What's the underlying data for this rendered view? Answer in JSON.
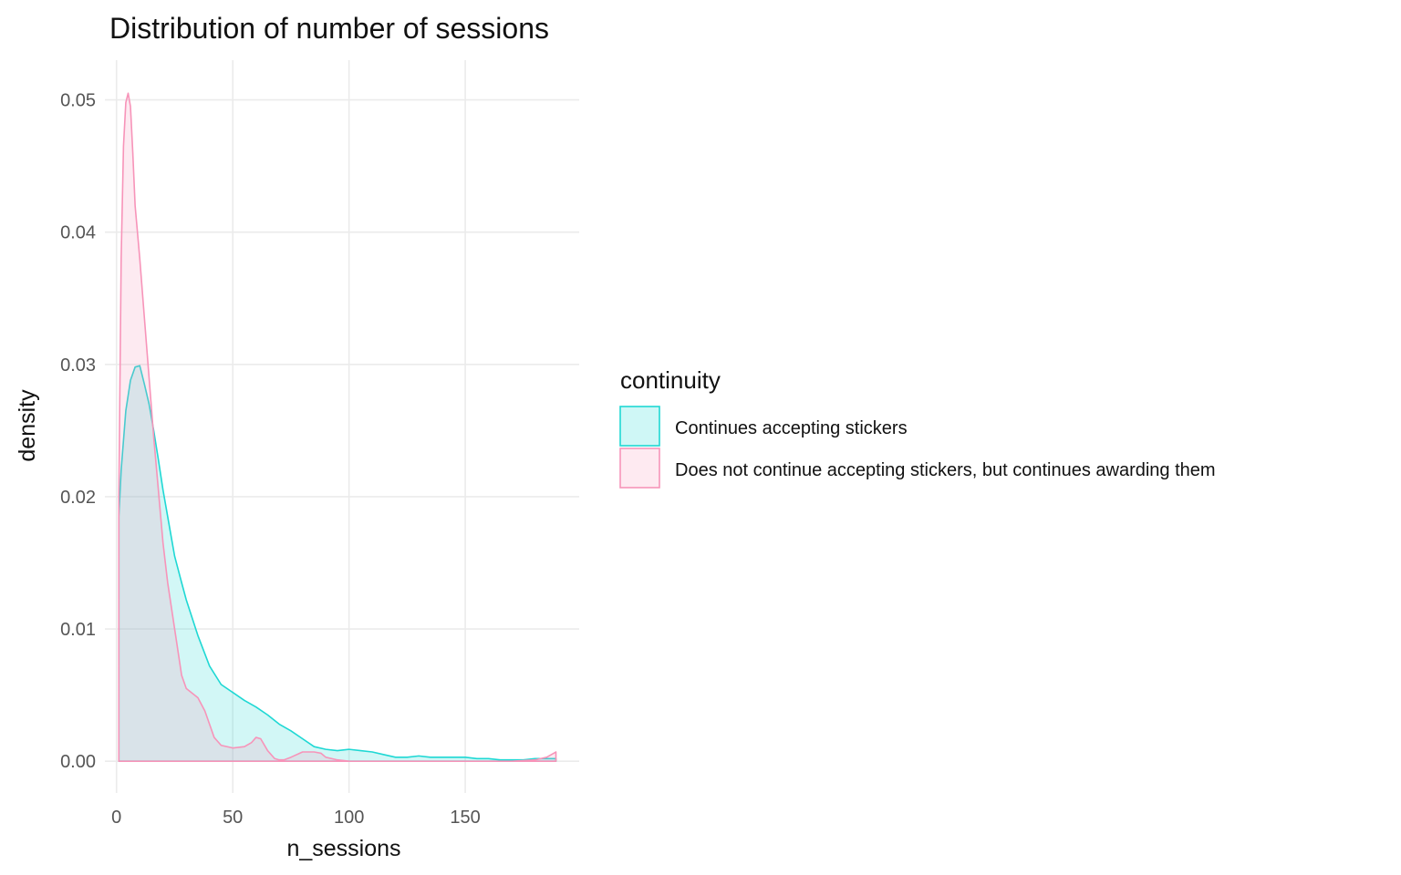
{
  "chart_data": {
    "type": "area",
    "title": "Distribution of number of sessions",
    "xlabel": "n_sessions",
    "ylabel": "density",
    "xlim": [
      -5,
      199
    ],
    "ylim": [
      -0.0024,
      0.053
    ],
    "xticks": [
      0,
      50,
      100,
      150
    ],
    "xtick_labels": [
      "0",
      "50",
      "100",
      "150"
    ],
    "yticks": [
      0,
      0.01,
      0.02,
      0.03,
      0.04,
      0.05
    ],
    "ytick_labels": [
      "0.00",
      "0.01",
      "0.02",
      "0.03",
      "0.04",
      "0.05"
    ],
    "grid": true,
    "legend": {
      "title": "continuity",
      "placement": "right"
    },
    "series": [
      {
        "name": "Continues accepting stickers",
        "color": "#1fd8d4",
        "fill": "#cff7f6",
        "x": [
          1,
          2,
          4,
          6,
          8,
          10,
          12,
          14,
          16,
          18,
          20,
          22,
          25,
          28,
          30,
          35,
          40,
          45,
          50,
          55,
          60,
          65,
          70,
          75,
          80,
          85,
          90,
          95,
          100,
          105,
          110,
          115,
          120,
          125,
          130,
          135,
          140,
          145,
          150,
          155,
          160,
          165,
          170,
          175,
          180,
          185,
          189
        ],
        "y": [
          0.0185,
          0.022,
          0.0265,
          0.0288,
          0.0298,
          0.0299,
          0.0285,
          0.027,
          0.025,
          0.0228,
          0.0205,
          0.0185,
          0.0155,
          0.0135,
          0.0122,
          0.0095,
          0.0072,
          0.0058,
          0.0052,
          0.0046,
          0.0041,
          0.0035,
          0.0028,
          0.0023,
          0.0017,
          0.0011,
          0.0009,
          0.0008,
          0.0009,
          0.0008,
          0.0007,
          0.0005,
          0.0003,
          0.0003,
          0.0004,
          0.0003,
          0.0003,
          0.0003,
          0.0003,
          0.0002,
          0.0002,
          0.0001,
          0.0001,
          0.0001,
          0.0002,
          0.0002,
          0.0002
        ]
      },
      {
        "name": "Does not continue accepting stickers, but continues awarding them",
        "color": "#f794b9",
        "fill": "#feeaf1",
        "x": [
          1,
          2,
          3,
          4,
          5,
          6,
          7,
          8,
          10,
          12,
          14,
          16,
          18,
          20,
          22,
          25,
          28,
          30,
          35,
          38,
          40,
          42,
          45,
          50,
          55,
          58,
          60,
          62,
          65,
          68,
          70,
          72,
          75,
          80,
          85,
          88,
          90,
          95,
          100,
          110,
          120,
          130,
          140,
          150,
          160,
          170,
          180,
          185,
          189
        ],
        "y": [
          0.02,
          0.038,
          0.0465,
          0.0498,
          0.0505,
          0.0495,
          0.046,
          0.042,
          0.038,
          0.0335,
          0.029,
          0.0245,
          0.0205,
          0.0165,
          0.0135,
          0.01,
          0.0065,
          0.0055,
          0.0048,
          0.0038,
          0.0028,
          0.0018,
          0.0012,
          0.001,
          0.0011,
          0.0014,
          0.0018,
          0.0017,
          0.0008,
          0.0002,
          0.0001,
          0.0001,
          0.0003,
          0.0007,
          0.0007,
          0.0006,
          0.0003,
          0.0001,
          0.0,
          0.0,
          0.0,
          0.0,
          0.0,
          0.0,
          0.0,
          0.0,
          0.0001,
          0.0003,
          0.0007
        ]
      }
    ]
  }
}
